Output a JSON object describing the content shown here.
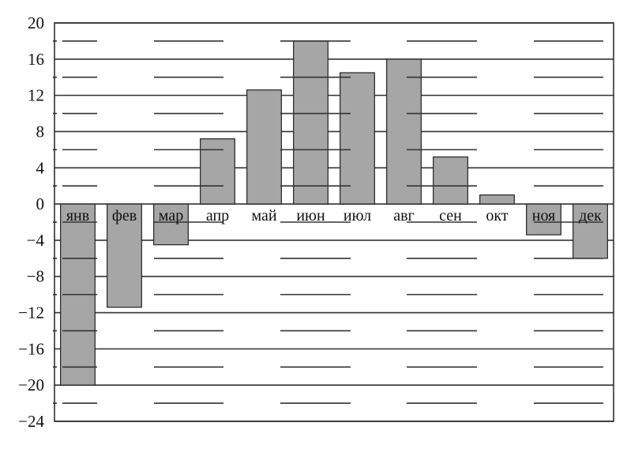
{
  "chart_data": {
    "type": "bar",
    "title": "",
    "xlabel": "",
    "ylabel": "",
    "categories": [
      "янв",
      "фев",
      "мар",
      "апр",
      "май",
      "июн",
      "июл",
      "авг",
      "сен",
      "окт",
      "ноя",
      "дек"
    ],
    "values": [
      -20,
      -11.4,
      -4.5,
      7.2,
      12.6,
      18,
      14.5,
      16,
      5.2,
      1,
      -3.4,
      -6
    ],
    "ylim": [
      -24,
      20
    ],
    "yticks": [
      20,
      16,
      12,
      8,
      4,
      0,
      -4,
      -8,
      -12,
      -16,
      -20,
      -24
    ],
    "ytick_labels": [
      "20",
      "16",
      "12",
      "8",
      "4",
      "0",
      "−4",
      "−8",
      "−12",
      "−16",
      "−20",
      "−24"
    ],
    "grid": true,
    "colors": {
      "bar": "#a6a6a6",
      "bar_border": "#222222",
      "grid": "#333333"
    }
  }
}
